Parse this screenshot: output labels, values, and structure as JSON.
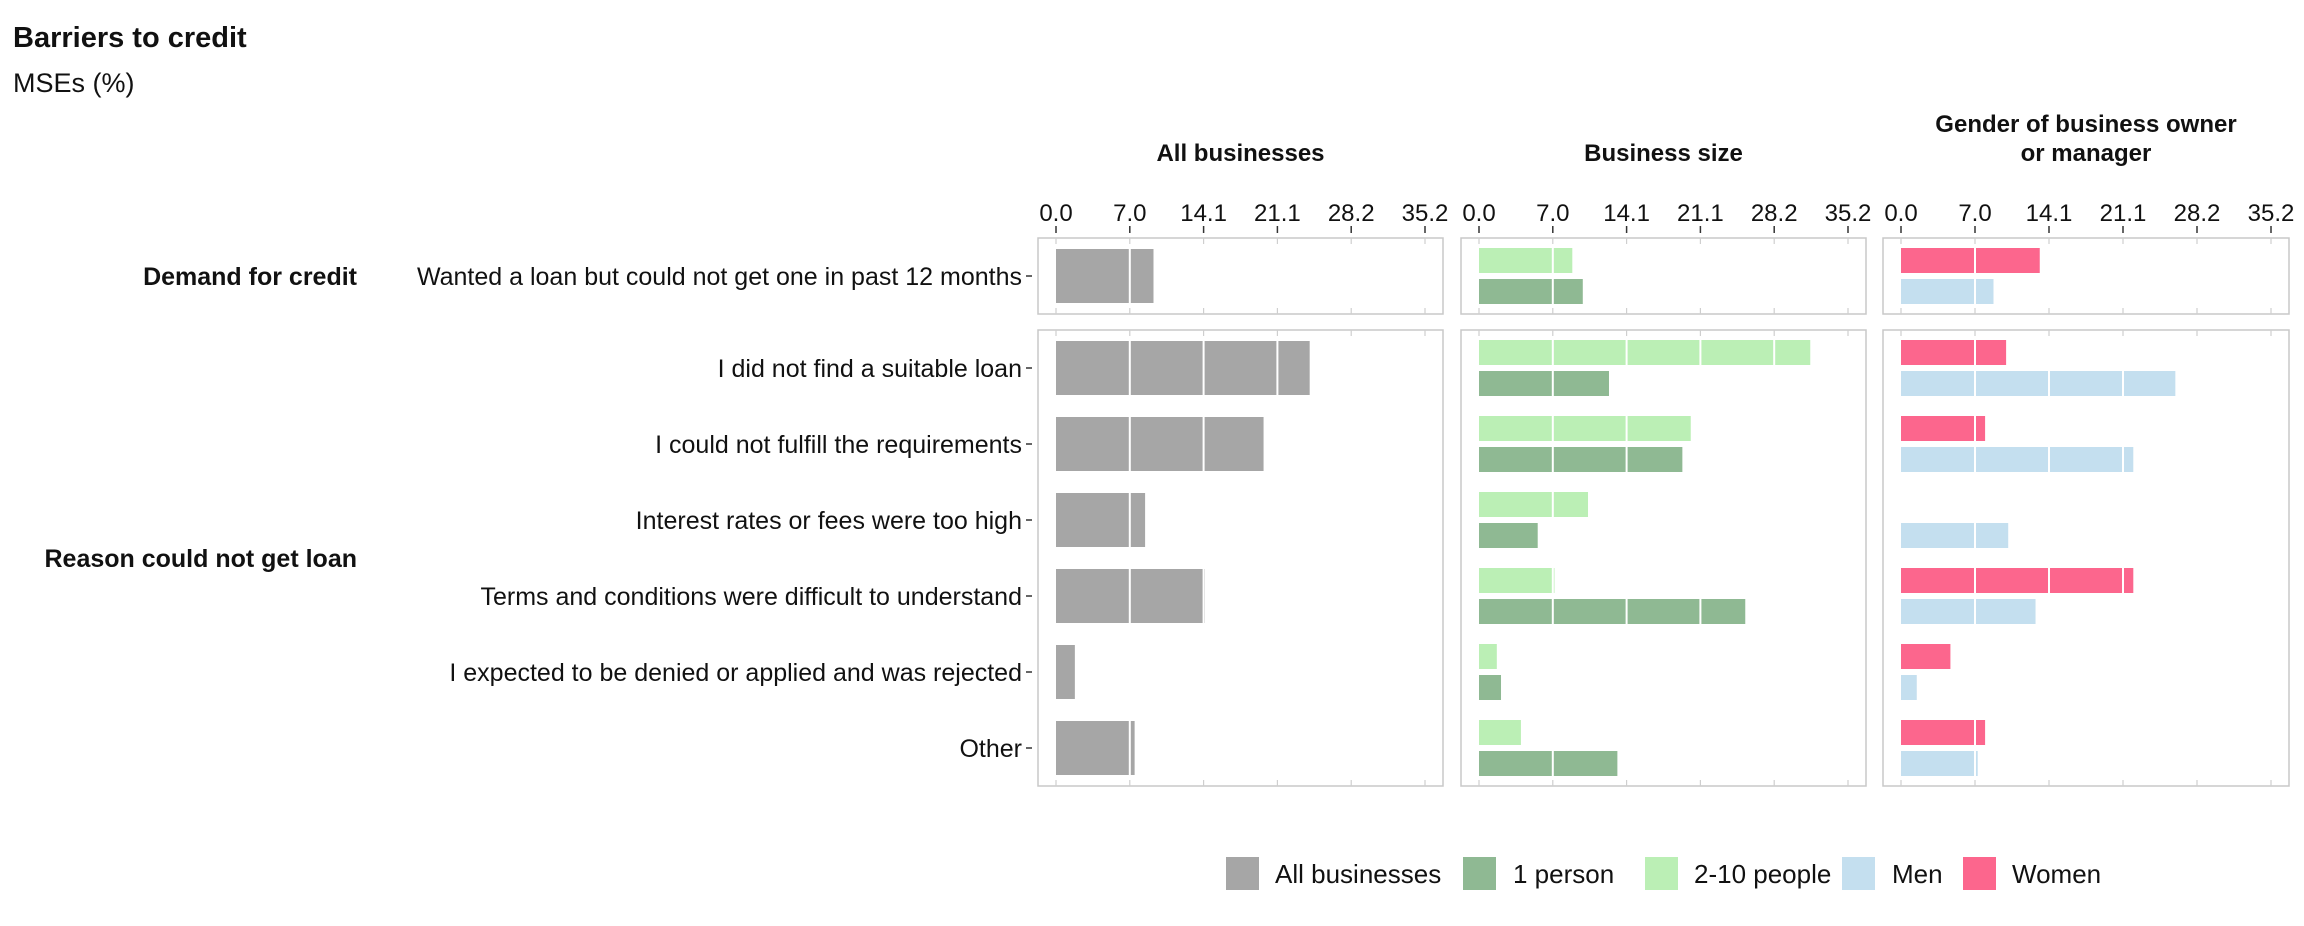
{
  "chart_data": {
    "type": "bar",
    "orientation": "horizontal",
    "title": "Barriers to credit",
    "subtitle": "MSEs (%)",
    "xlim": [
      0,
      35.2
    ],
    "x_ticks": [
      "0.0",
      "7.0",
      "14.1",
      "21.1",
      "28.2",
      "35.2"
    ],
    "tick_values": [
      0,
      7.04,
      14.08,
      21.12,
      28.16,
      35.2
    ],
    "grid": true,
    "legend_position": "bottom",
    "panels": [
      {
        "name": "All businesses",
        "title_lines": [
          "All businesses"
        ],
        "series_keys": [
          "all"
        ]
      },
      {
        "name": "Business size",
        "title_lines": [
          "Business size"
        ],
        "series_keys": [
          "size2_10",
          "size1"
        ]
      },
      {
        "name": "Gender of business owner or manager",
        "title_lines": [
          "Gender of business owner",
          "or manager"
        ],
        "series_keys": [
          "women",
          "men"
        ]
      }
    ],
    "groups": [
      {
        "name": "Demand for credit",
        "categories": [
          "Wanted a loan but could not get one in past 12 months"
        ]
      },
      {
        "name": "Reason could not get loan",
        "categories": [
          "I did not find a suitable loan",
          "I could not fulfill the requirements",
          "Interest rates or fees were too high",
          "Terms and conditions were difficult to understand",
          "I expected to be denied or applied and was rejected",
          "Other"
        ]
      }
    ],
    "series": [
      {
        "key": "all",
        "name": "All businesses",
        "color": "#a6a6a6",
        "values": [
          9.3,
          24.2,
          19.8,
          8.5,
          14.2,
          1.8,
          7.5
        ]
      },
      {
        "key": "size1",
        "name": "1 person",
        "color": "#8fb993",
        "values": [
          9.9,
          12.4,
          19.4,
          5.6,
          25.4,
          2.1,
          13.2
        ]
      },
      {
        "key": "size2_10",
        "name": "2-10 people",
        "color": "#bbefb5",
        "values": [
          8.9,
          31.6,
          20.2,
          10.4,
          7.2,
          1.7,
          4.0
        ]
      },
      {
        "key": "men",
        "name": "Men",
        "color": "#c4dfef",
        "values": [
          8.8,
          26.1,
          22.1,
          10.2,
          12.8,
          1.5,
          7.3
        ]
      },
      {
        "key": "women",
        "name": "Women",
        "color": "#fc668d",
        "values": [
          13.2,
          10.0,
          8.0,
          null,
          22.1,
          4.7,
          8.0
        ]
      }
    ],
    "legend_order": [
      "all",
      "size1",
      "size2_10",
      "men",
      "women"
    ]
  }
}
